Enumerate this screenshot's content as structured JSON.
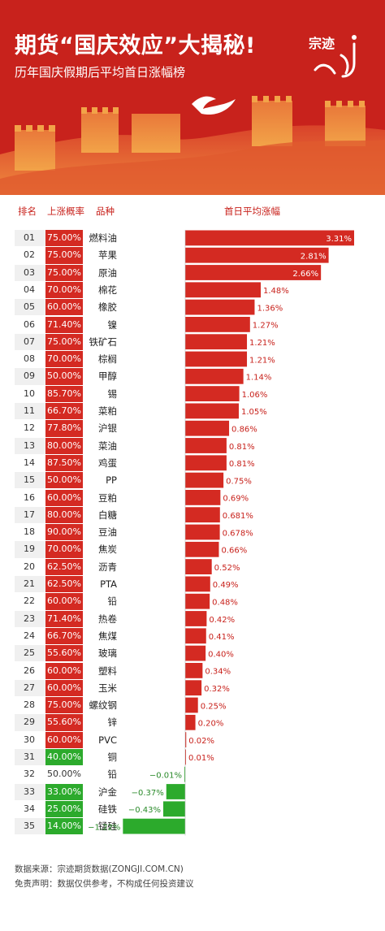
{
  "header": {
    "title": "期货“国庆效应”大揭秘!",
    "subtitle": "历年国庆假期后平均首日涨幅榜",
    "brand": "宗迹"
  },
  "columns": {
    "rank": "排名",
    "prob": "上涨概率",
    "variety": "品种",
    "change": "首日平均涨幅"
  },
  "colors": {
    "red": "#d42a22",
    "green": "#2caa2c",
    "header_bg": "#c8221c",
    "row_alt": "#f0f0f0"
  },
  "chart_data": {
    "type": "bar",
    "orientation": "horizontal",
    "title": "历年国庆假期后平均首日涨幅榜",
    "categories": [
      "燃料油",
      "苹果",
      "原油",
      "棉花",
      "橡胶",
      "镍",
      "铁矿石",
      "棕榈",
      "甲醇",
      "锡",
      "菜粕",
      "沪银",
      "菜油",
      "鸡蛋",
      "PP",
      "豆粕",
      "白糖",
      "豆油",
      "焦炭",
      "沥青",
      "PTA",
      "铅",
      "热卷",
      "焦煤",
      "玻璃",
      "塑料",
      "玉米",
      "螺纹钢",
      "锌",
      "PVC",
      "铜",
      "铅",
      "沪金",
      "硅铁",
      "锰硅"
    ],
    "ranks": [
      "01",
      "02",
      "03",
      "04",
      "05",
      "06",
      "07",
      "08",
      "09",
      "10",
      "11",
      "12",
      "13",
      "14",
      "15",
      "16",
      "17",
      "18",
      "19",
      "20",
      "21",
      "22",
      "23",
      "24",
      "25",
      "26",
      "27",
      "28",
      "29",
      "30",
      "31",
      "32",
      "33",
      "34",
      "35"
    ],
    "up_probability": [
      "75.00%",
      "75.00%",
      "75.00%",
      "70.00%",
      "60.00%",
      "71.40%",
      "75.00%",
      "70.00%",
      "50.00%",
      "85.70%",
      "66.70%",
      "77.80%",
      "80.00%",
      "87.50%",
      "50.00%",
      "60.00%",
      "80.00%",
      "90.00%",
      "70.00%",
      "62.50%",
      "62.50%",
      "60.00%",
      "71.40%",
      "66.70%",
      "55.60%",
      "60.00%",
      "60.00%",
      "75.00%",
      "55.60%",
      "60.00%",
      "40.00%",
      "50.00%",
      "33.00%",
      "25.00%",
      "14.00%"
    ],
    "values": [
      3.31,
      2.81,
      2.66,
      1.48,
      1.36,
      1.27,
      1.21,
      1.21,
      1.14,
      1.06,
      1.05,
      0.86,
      0.81,
      0.81,
      0.75,
      0.69,
      0.681,
      0.678,
      0.66,
      0.52,
      0.49,
      0.48,
      0.42,
      0.41,
      0.4,
      0.34,
      0.32,
      0.25,
      0.2,
      0.02,
      0.01,
      -0.01,
      -0.37,
      -0.43,
      -1.22
    ],
    "labels": [
      "3.31%",
      "2.81%",
      "2.66%",
      "1.48%",
      "1.36%",
      "1.27%",
      "1.21%",
      "1.21%",
      "1.14%",
      "1.06%",
      "1.05%",
      "0.86%",
      "0.81%",
      "0.81%",
      "0.75%",
      "0.69%",
      "0.681%",
      "0.678%",
      "0.66%",
      "0.52%",
      "0.49%",
      "0.48%",
      "0.42%",
      "0.41%",
      "0.40%",
      "0.34%",
      "0.32%",
      "0.25%",
      "0.20%",
      "0.02%",
      "0.01%",
      "−0.01%",
      "−0.37%",
      "−0.43%",
      "−1.22%"
    ],
    "xlim": [
      -1.22,
      3.31
    ],
    "grid": false,
    "legend": "none"
  },
  "footer": {
    "source_label": "数据来源：",
    "source_name": "宗迹期货数据(",
    "source_url": "ZONGJI.COM.CN",
    "source_close": ")",
    "disclaimer_label": "免责声明：",
    "disclaimer_text": "数据仅供参考，不构成任何投资建议"
  }
}
